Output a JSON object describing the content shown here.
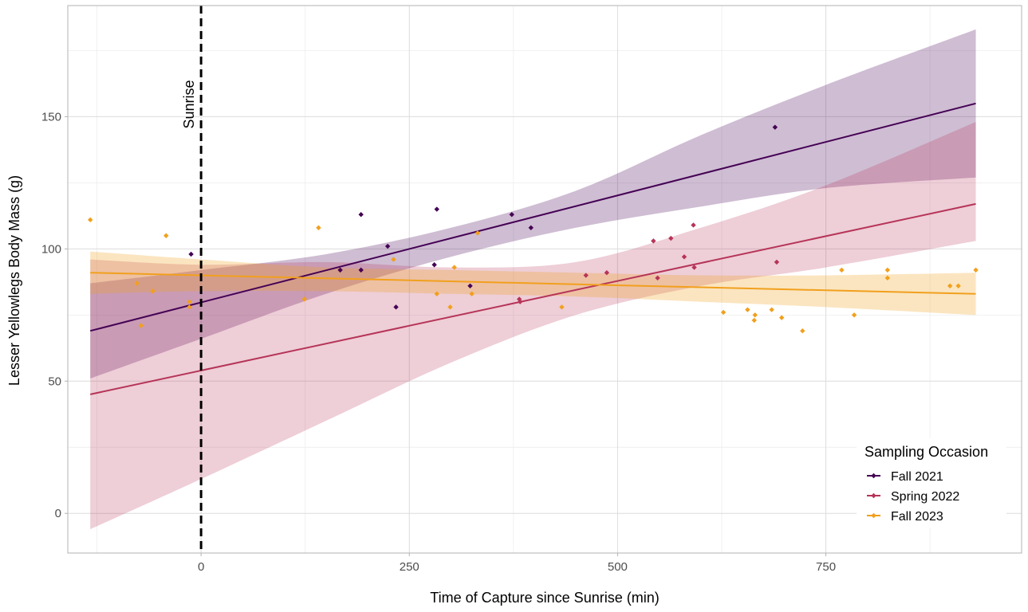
{
  "chart_data": {
    "type": "scatter",
    "xlabel": "Time of Capture since Sunrise (min)",
    "ylabel": "Lesser Yellowlegs Body Mass (g)",
    "xlim": [
      -160,
      985
    ],
    "ylim": [
      -15,
      192
    ],
    "x_ticks": [
      0,
      250,
      500,
      750
    ],
    "x_tick_labels": [
      "0",
      "250",
      "500",
      "750"
    ],
    "y_ticks": [
      0,
      50,
      100,
      150
    ],
    "y_tick_labels": [
      "0",
      "50",
      "100",
      "150"
    ],
    "grid": true,
    "legend": {
      "title": "Sampling Occasion",
      "position": "bottom-right"
    },
    "annotations": [
      {
        "text": "Sunrise",
        "x": 0,
        "style": "dashed vertical line"
      }
    ],
    "series": [
      {
        "name": "Fall 2021",
        "color": "#440154",
        "fit": {
          "x": [
            -133,
            930
          ],
          "y": [
            69,
            155
          ]
        },
        "ci": [
          {
            "x": -133,
            "lo": 51,
            "hi": 87
          },
          {
            "x": 0,
            "lo": 66,
            "hi": 92
          },
          {
            "x": 150,
            "lo": 83,
            "hi": 98
          },
          {
            "x": 300,
            "lo": 97,
            "hi": 108
          },
          {
            "x": 450,
            "lo": 108,
            "hi": 122
          },
          {
            "x": 600,
            "lo": 116,
            "hi": 143
          },
          {
            "x": 750,
            "lo": 123,
            "hi": 162
          },
          {
            "x": 930,
            "lo": 127,
            "hi": 183
          }
        ],
        "points": [
          {
            "x": -12,
            "y": 98
          },
          {
            "x": 167,
            "y": 92
          },
          {
            "x": 192,
            "y": 92
          },
          {
            "x": 192,
            "y": 113
          },
          {
            "x": 224,
            "y": 101
          },
          {
            "x": 234,
            "y": 78
          },
          {
            "x": 280,
            "y": 94
          },
          {
            "x": 283,
            "y": 115
          },
          {
            "x": 323,
            "y": 86
          },
          {
            "x": 373,
            "y": 113
          },
          {
            "x": 396,
            "y": 108
          },
          {
            "x": 689,
            "y": 146
          }
        ]
      },
      {
        "name": "Spring 2022",
        "color": "#B63458",
        "fit": {
          "x": [
            -133,
            930
          ],
          "y": [
            45,
            117
          ]
        },
        "ci": [
          {
            "x": -133,
            "lo": -6,
            "hi": 96
          },
          {
            "x": 0,
            "lo": 13,
            "hi": 94
          },
          {
            "x": 150,
            "lo": 35,
            "hi": 95
          },
          {
            "x": 300,
            "lo": 57,
            "hi": 93
          },
          {
            "x": 450,
            "lo": 75,
            "hi": 95
          },
          {
            "x": 600,
            "lo": 86,
            "hi": 108
          },
          {
            "x": 750,
            "lo": 93,
            "hi": 124
          },
          {
            "x": 930,
            "lo": 103,
            "hi": 148
          }
        ],
        "points": [
          {
            "x": 382,
            "y": 81
          },
          {
            "x": 383,
            "y": 80
          },
          {
            "x": 462,
            "y": 90
          },
          {
            "x": 487,
            "y": 91
          },
          {
            "x": 543,
            "y": 103
          },
          {
            "x": 548,
            "y": 89
          },
          {
            "x": 564,
            "y": 104
          },
          {
            "x": 580,
            "y": 97
          },
          {
            "x": 591,
            "y": 109
          },
          {
            "x": 592,
            "y": 93
          },
          {
            "x": 691,
            "y": 95
          }
        ]
      },
      {
        "name": "Fall 2023",
        "color": "#F1A01D",
        "fit": {
          "x": [
            -133,
            930
          ],
          "y": [
            91,
            83
          ]
        },
        "ci": [
          {
            "x": -133,
            "lo": 83,
            "hi": 99
          },
          {
            "x": 0,
            "lo": 84,
            "hi": 96
          },
          {
            "x": 150,
            "lo": 84,
            "hi": 93
          },
          {
            "x": 300,
            "lo": 83,
            "hi": 92
          },
          {
            "x": 450,
            "lo": 82,
            "hi": 91
          },
          {
            "x": 600,
            "lo": 80,
            "hi": 90
          },
          {
            "x": 750,
            "lo": 78,
            "hi": 90
          },
          {
            "x": 930,
            "lo": 75,
            "hi": 91
          }
        ],
        "points": [
          {
            "x": -133,
            "y": 111
          },
          {
            "x": -77,
            "y": 87
          },
          {
            "x": -72,
            "y": 71
          },
          {
            "x": -58,
            "y": 84
          },
          {
            "x": -42,
            "y": 105
          },
          {
            "x": -14,
            "y": 78
          },
          {
            "x": -14,
            "y": 80
          },
          {
            "x": 124,
            "y": 81
          },
          {
            "x": 141,
            "y": 108
          },
          {
            "x": 231,
            "y": 96
          },
          {
            "x": 283,
            "y": 83
          },
          {
            "x": 299,
            "y": 78
          },
          {
            "x": 304,
            "y": 93
          },
          {
            "x": 325,
            "y": 83
          },
          {
            "x": 332,
            "y": 106
          },
          {
            "x": 433,
            "y": 78
          },
          {
            "x": 627,
            "y": 76
          },
          {
            "x": 656,
            "y": 77
          },
          {
            "x": 664,
            "y": 73
          },
          {
            "x": 665,
            "y": 75
          },
          {
            "x": 685,
            "y": 77
          },
          {
            "x": 697,
            "y": 74
          },
          {
            "x": 722,
            "y": 69
          },
          {
            "x": 769,
            "y": 92
          },
          {
            "x": 784,
            "y": 75
          },
          {
            "x": 824,
            "y": 89
          },
          {
            "x": 824,
            "y": 92
          },
          {
            "x": 899,
            "y": 86
          },
          {
            "x": 909,
            "y": 86
          },
          {
            "x": 930,
            "y": 92
          }
        ]
      }
    ]
  }
}
